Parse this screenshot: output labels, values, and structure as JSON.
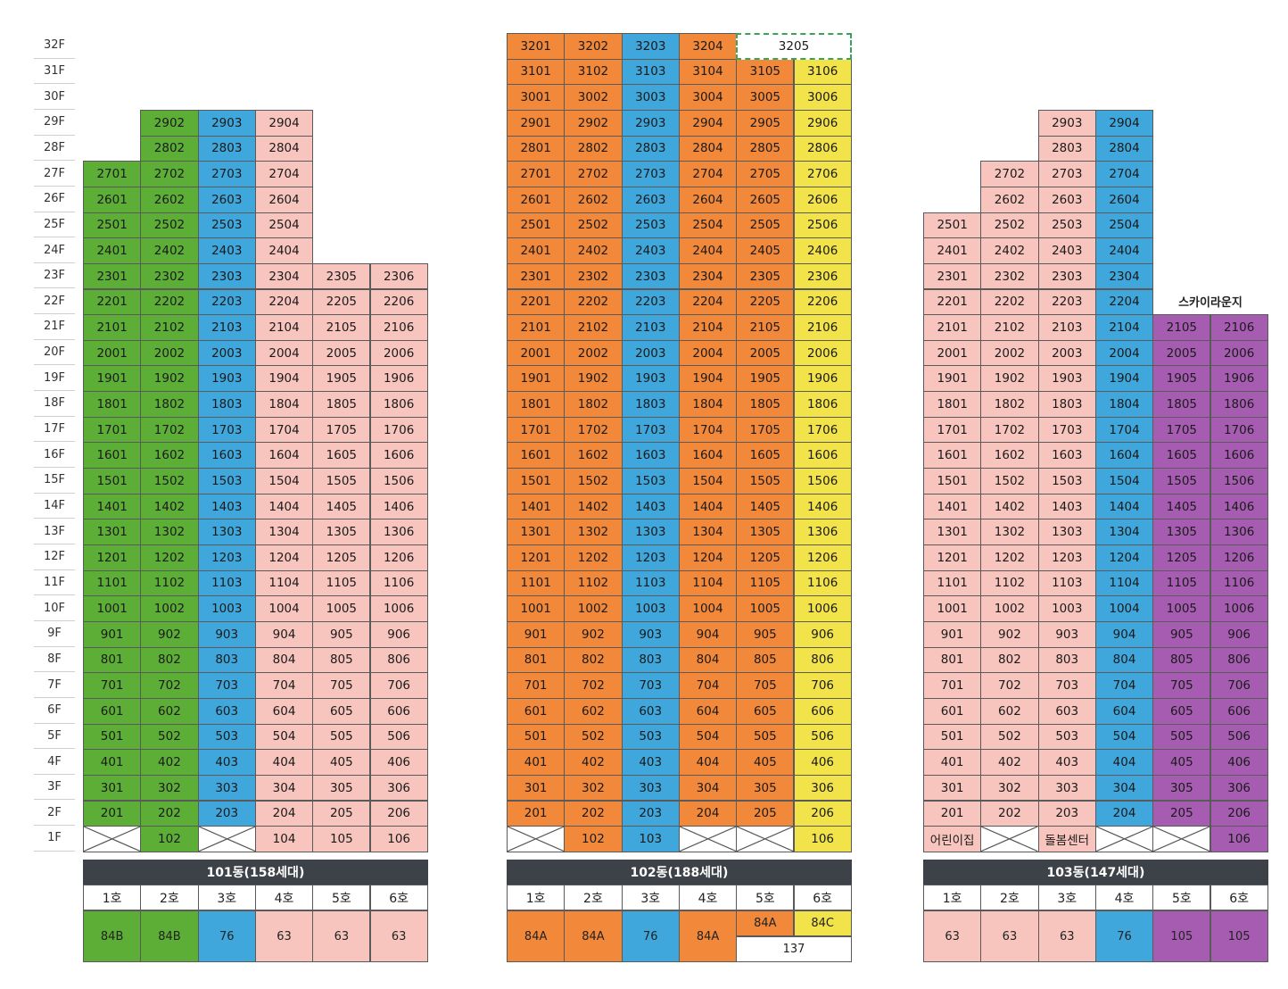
{
  "floors": [
    "32F",
    "31F",
    "30F",
    "29F",
    "28F",
    "27F",
    "26F",
    "25F",
    "24F",
    "23F",
    "22F",
    "21F",
    "20F",
    "19F",
    "18F",
    "17F",
    "16F",
    "15F",
    "14F",
    "13F",
    "12F",
    "11F",
    "10F",
    "9F",
    "8F",
    "7F",
    "6F",
    "5F",
    "4F",
    "3F",
    "2F",
    "1F"
  ],
  "colors": {
    "green": "#5dae37",
    "blue": "#3fa7db",
    "pink": "#f7c5bd",
    "orange": "#f2883a",
    "yellow": "#f2e34b",
    "purple": "#a65db1"
  },
  "buildings": [
    {
      "id": "101",
      "header": "101동(158세대)",
      "columns": [
        {
          "ho": "1호",
          "type": "84B",
          "color": "green",
          "top": 27,
          "first_floor": "x"
        },
        {
          "ho": "2호",
          "type": "84B",
          "color": "green",
          "top": 29,
          "first_floor": "102"
        },
        {
          "ho": "3호",
          "type": "76",
          "color": "blue",
          "top": 29,
          "first_floor": "x"
        },
        {
          "ho": "4호",
          "type": "63",
          "color": "pink",
          "top": 29,
          "first_floor": "104"
        },
        {
          "ho": "5호",
          "type": "63",
          "color": "pink",
          "top": 23,
          "first_floor": "105"
        },
        {
          "ho": "6호",
          "type": "63",
          "color": "pink",
          "top": 23,
          "first_floor": "106"
        }
      ]
    },
    {
      "id": "102",
      "header": "102동(188세대)",
      "columns": [
        {
          "ho": "1호",
          "type": "84A",
          "color": "orange",
          "top": 32,
          "first_floor": "x"
        },
        {
          "ho": "2호",
          "type": "84A",
          "color": "orange",
          "top": 32,
          "first_floor": "102"
        },
        {
          "ho": "3호",
          "type": "76",
          "color": "blue",
          "top": 32,
          "first_floor": "103"
        },
        {
          "ho": "4호",
          "type": "84A",
          "color": "orange",
          "top": 32,
          "first_floor": "x"
        },
        {
          "ho": "5호",
          "type": "84A",
          "color": "orange",
          "top": 31,
          "first_floor": "x"
        },
        {
          "ho": "6호",
          "type": "84C",
          "color": "yellow",
          "top": 31,
          "first_floor": "106"
        }
      ],
      "penthouse": {
        "unit": "3205",
        "type": "137"
      }
    },
    {
      "id": "103",
      "header": "103동(147세대)",
      "columns": [
        {
          "ho": "1호",
          "type": "63",
          "color": "pink",
          "top": 25,
          "first_floor": "어린이집"
        },
        {
          "ho": "2호",
          "type": "63",
          "color": "pink",
          "top": 27,
          "first_floor": "x"
        },
        {
          "ho": "3호",
          "type": "63",
          "color": "pink",
          "top": 29,
          "first_floor": "돌봄센터"
        },
        {
          "ho": "4호",
          "type": "76",
          "color": "blue",
          "top": 29,
          "first_floor": "x"
        },
        {
          "ho": "5호",
          "type": "105",
          "color": "purple",
          "top": 21,
          "first_floor": "x"
        },
        {
          "ho": "6호",
          "type": "105",
          "color": "purple",
          "top": 21,
          "first_floor": "106"
        }
      ],
      "note": "스카이라운지"
    }
  ]
}
